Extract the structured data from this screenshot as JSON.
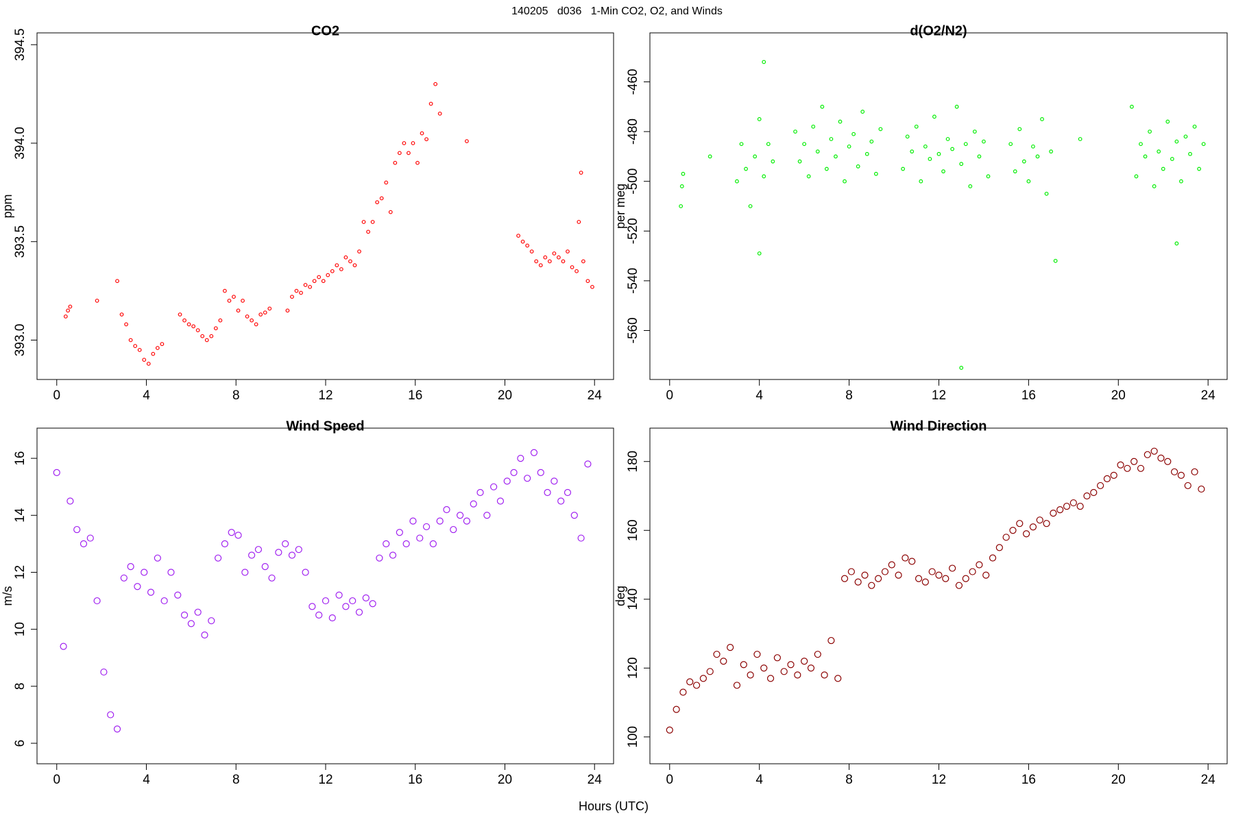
{
  "title": "140205   d036   1-Min CO2, O2, and Winds",
  "xlabel": "Hours (UTC)",
  "chart_data": [
    {
      "type": "scatter",
      "title": "CO2",
      "ylabel": "ppm",
      "color": "#ff0000",
      "xlim": [
        -0.88,
        24.85
      ],
      "xticks": [
        0,
        4,
        8,
        12,
        16,
        20,
        24
      ],
      "ylim": [
        392.8,
        394.56
      ],
      "yticks": [
        {
          "value": 393,
          "label": "393.0"
        },
        393.5,
        {
          "value": 394,
          "label": "394.0"
        },
        394.5
      ],
      "x": [
        0.4,
        0.5,
        0.6,
        1.8,
        2.7,
        2.9,
        3.1,
        3.3,
        3.5,
        3.7,
        3.9,
        4.1,
        4.3,
        4.5,
        4.7,
        5.5,
        5.7,
        5.9,
        6.1,
        6.3,
        6.5,
        6.7,
        6.9,
        7.1,
        7.3,
        7.5,
        7.7,
        7.9,
        8.1,
        8.3,
        8.5,
        8.7,
        8.9,
        9.1,
        9.3,
        9.5,
        10.3,
        10.5,
        10.7,
        10.9,
        11.1,
        11.3,
        11.5,
        11.7,
        11.9,
        12.1,
        12.3,
        12.5,
        12.7,
        12.9,
        13.1,
        13.3,
        13.5,
        13.7,
        13.9,
        14.1,
        14.3,
        14.5,
        14.7,
        14.9,
        15.1,
        15.3,
        15.5,
        15.7,
        15.9,
        16.1,
        16.3,
        16.5,
        16.7,
        16.9,
        17.1,
        18.3,
        20.6,
        20.8,
        21.0,
        21.2,
        21.4,
        21.6,
        21.8,
        22.0,
        22.2,
        22.4,
        22.6,
        22.8,
        23.0,
        23.2,
        23.3,
        23.4,
        23.5,
        23.7,
        23.9
      ],
      "values": [
        393.12,
        393.15,
        393.17,
        393.2,
        393.3,
        393.13,
        393.08,
        393.0,
        392.97,
        392.95,
        392.9,
        392.88,
        392.93,
        392.96,
        392.98,
        393.13,
        393.1,
        393.08,
        393.07,
        393.05,
        393.02,
        393.0,
        393.02,
        393.06,
        393.1,
        393.25,
        393.2,
        393.22,
        393.15,
        393.2,
        393.12,
        393.1,
        393.08,
        393.13,
        393.14,
        393.16,
        393.15,
        393.22,
        393.25,
        393.24,
        393.28,
        393.27,
        393.3,
        393.32,
        393.3,
        393.33,
        393.35,
        393.38,
        393.36,
        393.42,
        393.4,
        393.38,
        393.45,
        393.6,
        393.55,
        393.6,
        393.7,
        393.72,
        393.8,
        393.65,
        393.9,
        393.95,
        394.0,
        393.95,
        394.0,
        393.9,
        394.05,
        394.02,
        394.2,
        394.3,
        394.15,
        394.01,
        393.53,
        393.5,
        393.48,
        393.45,
        393.4,
        393.38,
        393.42,
        393.4,
        393.44,
        393.42,
        393.4,
        393.45,
        393.37,
        393.35,
        393.6,
        393.85,
        393.4,
        393.3,
        393.27
      ]
    },
    {
      "type": "scatter",
      "title": "d(O2/N2)",
      "ylabel": "per meg",
      "color": "#00ee00",
      "xlim": [
        -0.88,
        24.85
      ],
      "xticks": [
        0,
        4,
        8,
        12,
        16,
        20,
        24
      ],
      "ylim": [
        -579.7,
        -440.3
      ],
      "yticks": [
        -560,
        -540,
        -520,
        -500,
        -480,
        -460
      ],
      "x": [
        0.5,
        0.55,
        0.6,
        1.8,
        3.0,
        3.2,
        3.4,
        3.6,
        3.8,
        4.0,
        4.2,
        4.4,
        4.6,
        5.6,
        5.8,
        6.0,
        6.2,
        6.4,
        6.6,
        6.8,
        7.0,
        7.2,
        7.4,
        7.6,
        7.8,
        8.0,
        8.2,
        8.4,
        8.6,
        8.8,
        9.0,
        9.2,
        9.4,
        10.4,
        10.6,
        10.8,
        11.0,
        11.2,
        11.4,
        11.6,
        11.8,
        12.0,
        12.2,
        12.4,
        12.6,
        12.8,
        13.0,
        13.2,
        13.4,
        13.6,
        13.8,
        14.0,
        14.2,
        15.2,
        15.4,
        15.6,
        15.8,
        16.0,
        16.2,
        16.4,
        16.6,
        16.8,
        17.0,
        17.2,
        18.3,
        20.6,
        20.8,
        21.0,
        21.2,
        21.4,
        21.6,
        21.8,
        22.0,
        22.2,
        22.4,
        22.6,
        22.8,
        23.0,
        23.2,
        23.4,
        23.6,
        23.8,
        4.0,
        13.0,
        22.6,
        4.2
      ],
      "values": [
        -510,
        -502,
        -497,
        -490,
        -500,
        -485,
        -495,
        -510,
        -490,
        -475,
        -498,
        -485,
        -492,
        -480,
        -492,
        -485,
        -498,
        -478,
        -488,
        -470,
        -495,
        -483,
        -490,
        -476,
        -500,
        -486,
        -481,
        -494,
        -472,
        -489,
        -484,
        -497,
        -479,
        -495,
        -482,
        -488,
        -478,
        -500,
        -486,
        -491,
        -474,
        -489,
        -496,
        -483,
        -487,
        -470,
        -493,
        -485,
        -502,
        -480,
        -490,
        -484,
        -498,
        -485,
        -496,
        -479,
        -492,
        -500,
        -486,
        -490,
        -475,
        -505,
        -488,
        -532,
        -483,
        -470,
        -498,
        -485,
        -490,
        -480,
        -502,
        -488,
        -495,
        -476,
        -491,
        -484,
        -500,
        -482,
        -489,
        -478,
        -495,
        -485,
        -529,
        -575,
        -525,
        -452
      ]
    },
    {
      "type": "scatter",
      "title": "Wind Speed",
      "ylabel": "m/s",
      "color": "#a020f0",
      "xlim": [
        -0.88,
        24.85
      ],
      "xticks": [
        0,
        4,
        8,
        12,
        16,
        20,
        24
      ],
      "ylim": [
        5.28,
        17.06
      ],
      "yticks": [
        6,
        8,
        10,
        12,
        14,
        16
      ],
      "x": [
        0,
        0.3,
        0.6,
        0.9,
        1.2,
        1.5,
        1.8,
        2.1,
        2.4,
        2.7,
        3.0,
        3.3,
        3.6,
        3.9,
        4.2,
        4.5,
        4.8,
        5.1,
        5.4,
        5.7,
        6.0,
        6.3,
        6.6,
        6.9,
        7.2,
        7.5,
        7.8,
        8.1,
        8.4,
        8.7,
        9.0,
        9.3,
        9.6,
        9.9,
        10.2,
        10.5,
        10.8,
        11.1,
        11.4,
        11.7,
        12.0,
        12.3,
        12.6,
        12.9,
        13.2,
        13.5,
        13.8,
        14.1,
        14.4,
        14.7,
        15.0,
        15.3,
        15.6,
        15.9,
        16.2,
        16.5,
        16.8,
        17.1,
        17.4,
        17.7,
        18.0,
        18.3,
        18.6,
        18.9,
        19.2,
        19.5,
        19.8,
        20.1,
        20.4,
        20.7,
        21.0,
        21.3,
        21.6,
        21.9,
        22.2,
        22.5,
        22.8,
        23.1,
        23.4,
        23.7
      ],
      "values": [
        15.5,
        9.4,
        14.5,
        13.5,
        13.0,
        13.2,
        11.0,
        8.5,
        7.0,
        6.5,
        11.8,
        12.2,
        11.5,
        12.0,
        11.3,
        12.5,
        11.0,
        12.0,
        11.2,
        10.5,
        10.2,
        10.6,
        9.8,
        10.3,
        12.5,
        13.0,
        13.4,
        13.3,
        12.0,
        12.6,
        12.8,
        12.2,
        11.8,
        12.7,
        13.0,
        12.6,
        12.8,
        12.0,
        10.8,
        10.5,
        11.0,
        10.4,
        11.2,
        10.8,
        11.0,
        10.6,
        11.1,
        10.9,
        12.5,
        13.0,
        12.6,
        13.4,
        13.0,
        13.8,
        13.2,
        13.6,
        13.0,
        13.8,
        14.2,
        13.5,
        14.0,
        13.8,
        14.4,
        14.8,
        14.0,
        15.0,
        14.5,
        15.2,
        15.5,
        16.0,
        15.3,
        16.2,
        15.5,
        14.8,
        15.2,
        14.5,
        14.8,
        14.0,
        13.2,
        15.8
      ]
    },
    {
      "type": "scatter",
      "title": "Wind Direction",
      "ylabel": "deg",
      "color": "#8b0000",
      "xlim": [
        -0.88,
        24.85
      ],
      "xticks": [
        0,
        4,
        8,
        12,
        16,
        20,
        24
      ],
      "ylim": [
        92.2,
        189.7
      ],
      "yticks": [
        100,
        120,
        140,
        160,
        180
      ],
      "x": [
        0,
        0.3,
        0.6,
        0.9,
        1.2,
        1.5,
        1.8,
        2.1,
        2.4,
        2.7,
        3.0,
        3.3,
        3.6,
        3.9,
        4.2,
        4.5,
        4.8,
        5.1,
        5.4,
        5.7,
        6.0,
        6.3,
        6.6,
        6.9,
        7.2,
        7.5,
        7.8,
        8.1,
        8.4,
        8.7,
        9.0,
        9.3,
        9.6,
        9.9,
        10.2,
        10.5,
        10.8,
        11.1,
        11.4,
        11.7,
        12.0,
        12.3,
        12.6,
        12.9,
        13.2,
        13.5,
        13.8,
        14.1,
        14.4,
        14.7,
        15.0,
        15.3,
        15.6,
        15.9,
        16.2,
        16.5,
        16.8,
        17.1,
        17.4,
        17.7,
        18.0,
        18.3,
        18.6,
        18.9,
        19.2,
        19.5,
        19.8,
        20.1,
        20.4,
        20.7,
        21.0,
        21.3,
        21.6,
        21.9,
        22.2,
        22.5,
        22.8,
        23.1,
        23.4,
        23.7
      ],
      "values": [
        102,
        108,
        113,
        116,
        115,
        117,
        119,
        124,
        122,
        126,
        115,
        121,
        118,
        124,
        120,
        117,
        123,
        119,
        121,
        118,
        122,
        120,
        124,
        118,
        128,
        117,
        146,
        148,
        145,
        147,
        144,
        146,
        148,
        150,
        147,
        152,
        151,
        146,
        145,
        148,
        147,
        146,
        149,
        144,
        146,
        148,
        150,
        147,
        152,
        155,
        158,
        160,
        162,
        159,
        161,
        163,
        162,
        165,
        166,
        167,
        168,
        167,
        170,
        171,
        173,
        175,
        176,
        179,
        178,
        180,
        178,
        182,
        183,
        181,
        180,
        177,
        176,
        173,
        177,
        172
      ]
    }
  ]
}
